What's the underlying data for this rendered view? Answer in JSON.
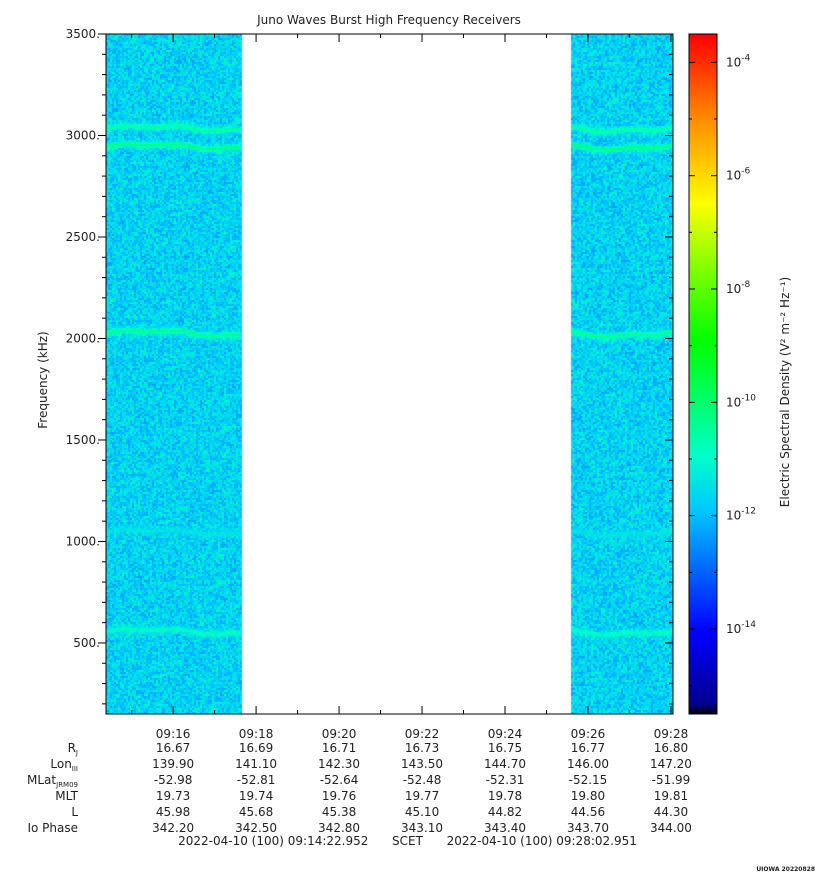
{
  "chart_data": {
    "type": "heatmap",
    "title": "Juno Waves Burst High Frequency Receivers",
    "ylabel": "Frequency (kHz)",
    "ylim": [
      150,
      3500
    ],
    "y_ticks": [
      "500.",
      "1000.",
      "1500.",
      "2000.",
      "2500.",
      "3000.",
      "3500."
    ],
    "y_tick_values": [
      500,
      1000,
      1500,
      2000,
      2500,
      3000,
      3500
    ],
    "x_range": [
      "09:14:22.952",
      "09:28:02.951"
    ],
    "x_ticks": [
      "09:16",
      "09:18",
      "09:20",
      "09:22",
      "09:24",
      "09:26",
      "09:28"
    ],
    "data_intervals": [
      [
        "09:14:22.952",
        "09:17:40"
      ],
      [
        "09:25:35",
        "09:28:02.951"
      ]
    ],
    "background_level_log10": -11.7,
    "emission_bands": [
      {
        "freq_khz": 3040,
        "level_log10": -10.6
      },
      {
        "freq_khz": 2950,
        "level_log10": -10.3
      },
      {
        "freq_khz": 2030,
        "level_log10": -10.4
      },
      {
        "freq_khz": 1050,
        "level_log10": -11.4
      },
      {
        "freq_khz": 560,
        "level_log10": -10.9
      }
    ],
    "colorbar": {
      "label": "Electric Spectral Density (V² m⁻² Hz⁻¹)",
      "range_log10": [
        -15.5,
        -3.5
      ],
      "tick_exponents": [
        -4,
        -6,
        -8,
        -10,
        -12,
        -14
      ],
      "tick_prefix": "10",
      "colormap": "rainbow"
    }
  },
  "ephemeris": {
    "rows": [
      {
        "label_main": "R",
        "label_sub": "J",
        "values": [
          "16.67",
          "16.69",
          "16.71",
          "16.73",
          "16.75",
          "16.77",
          "16.80"
        ]
      },
      {
        "label_main": "Lon",
        "label_sub": "III",
        "values": [
          "139.90",
          "141.10",
          "142.30",
          "143.50",
          "144.70",
          "146.00",
          "147.20"
        ]
      },
      {
        "label_main": "MLat",
        "label_sub": "JRM09",
        "values": [
          "-52.98",
          "-52.81",
          "-52.64",
          "-52.48",
          "-52.31",
          "-52.15",
          "-51.99"
        ]
      },
      {
        "label_main": "MLT",
        "label_sub": "",
        "values": [
          "19.73",
          "19.74",
          "19.76",
          "19.77",
          "19.78",
          "19.80",
          "19.81"
        ]
      },
      {
        "label_main": "L",
        "label_sub": "",
        "values": [
          "45.98",
          "45.68",
          "45.38",
          "45.10",
          "44.82",
          "44.56",
          "44.30"
        ]
      },
      {
        "label_main": "Io Phase",
        "label_sub": "",
        "values": [
          "342.20",
          "342.50",
          "342.80",
          "343.10",
          "343.40",
          "343.70",
          "344.00"
        ]
      }
    ]
  },
  "footer": {
    "start": "2022-04-10 (100) 09:14:22.952",
    "mid": "SCET",
    "end": "2022-04-10 (100) 09:28:02.951"
  },
  "stamp": "UIOWA 20220828"
}
